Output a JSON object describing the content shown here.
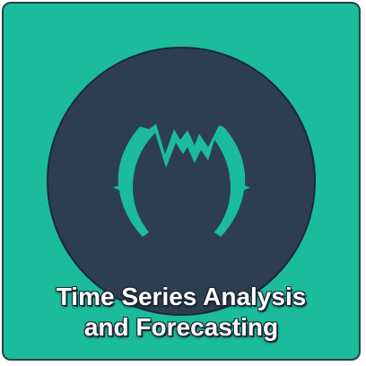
{
  "card": {
    "title_line1": "Time Series Analysis",
    "title_line2": "and Forecasting"
  },
  "icons": {
    "logo": "time-series-waveform-arc-icon"
  },
  "colors": {
    "background": "#1bbc9b",
    "circle": "#2d3e50",
    "border": "#2c3e50",
    "logo": "#1bbc9b",
    "text": "#ffffff"
  }
}
